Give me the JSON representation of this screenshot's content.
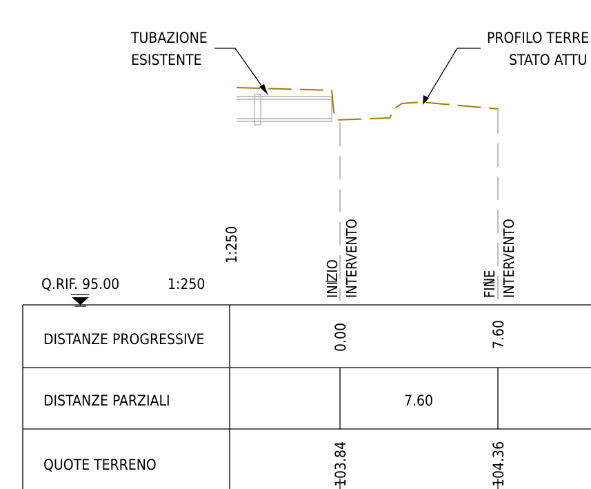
{
  "labels": {
    "pipe_line1": "TUBAZIONE",
    "pipe_line2": "ESISTENTE",
    "ground_line1": "PROFILO TERRE",
    "ground_line2": "STATO ATTU",
    "scale_vertical": "1:250",
    "reference_level": "Q.RIF. 95.00",
    "scale_horizontal": "1:250",
    "start_line1": "INIZIO",
    "start_line2": "INTERVENTO",
    "end_line1": "FINE",
    "end_line2": "INTERVENTO"
  },
  "table": {
    "rows": [
      {
        "header": "DISTANZE PROGRESSIVE"
      },
      {
        "header": "DISTANZE PARZIALI"
      },
      {
        "header": "QUOTE TERRENO"
      }
    ],
    "progressive": [
      "0.00",
      "7.60"
    ],
    "partial": "7.60",
    "ground_elevations": [
      "103.84",
      "104.36"
    ]
  },
  "colors": {
    "ground_profile": "#a37c00",
    "pipe": "#b0b0b0",
    "guide_line": "#9a9a9a",
    "ink": "#000000"
  }
}
